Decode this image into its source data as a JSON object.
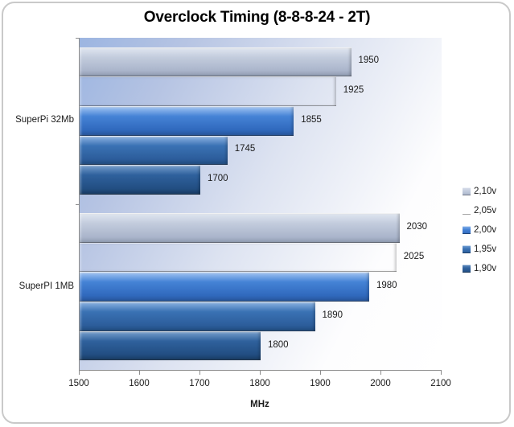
{
  "chart_data": {
    "type": "bar",
    "orientation": "horizontal",
    "title": "Overclock Timing (8-8-8-24 - 2T)",
    "xlabel": "MHz",
    "xlim": [
      1500,
      2100
    ],
    "xticks": [
      "1500",
      "1600",
      "1700",
      "1800",
      "1900",
      "2000",
      "2100"
    ],
    "categories": [
      "SuperPi 32Mb",
      "SuperPI 1MB"
    ],
    "series": [
      {
        "name": "2,10v",
        "values": [
          1950,
          2030
        ],
        "gradient": [
          "#f3f6fa",
          "#d9e0ec",
          "#c3ccdd",
          "#aab5cb",
          "#8e99af"
        ]
      },
      {
        "name": "2,05v",
        "values": [
          1925,
          2025
        ],
        "gradient": [
          "#e4eaf7",
          "#b3c3e2",
          "#8ba0cc",
          "#7档b8",
          "#5d74a2"
        ]
      },
      {
        "name": "2,00v",
        "values": [
          1855,
          1980
        ],
        "gradient": [
          "#d2e2f8",
          "#8db6ec",
          "#4583d6",
          "#3069bd",
          "#265397"
        ]
      },
      {
        "name": "1,95v",
        "values": [
          1745,
          1890
        ],
        "gradient": [
          "#c2d6ee",
          "#7aa4d8",
          "#3a72b4",
          "#2c5d9b",
          "#1f4a7c"
        ]
      },
      {
        "name": "1,90v",
        "values": [
          1700,
          1800
        ],
        "gradient": [
          "#b2c8e3",
          "#6691c2",
          "#2f619d",
          "#224e82",
          "#17395f"
        ]
      }
    ],
    "legend_position": "right",
    "value_labels_shown": true,
    "grid": false,
    "plot_background": {
      "from": "#9cb5e1",
      "to": "#ffffff"
    },
    "axis_color": "#8c8c8c"
  }
}
